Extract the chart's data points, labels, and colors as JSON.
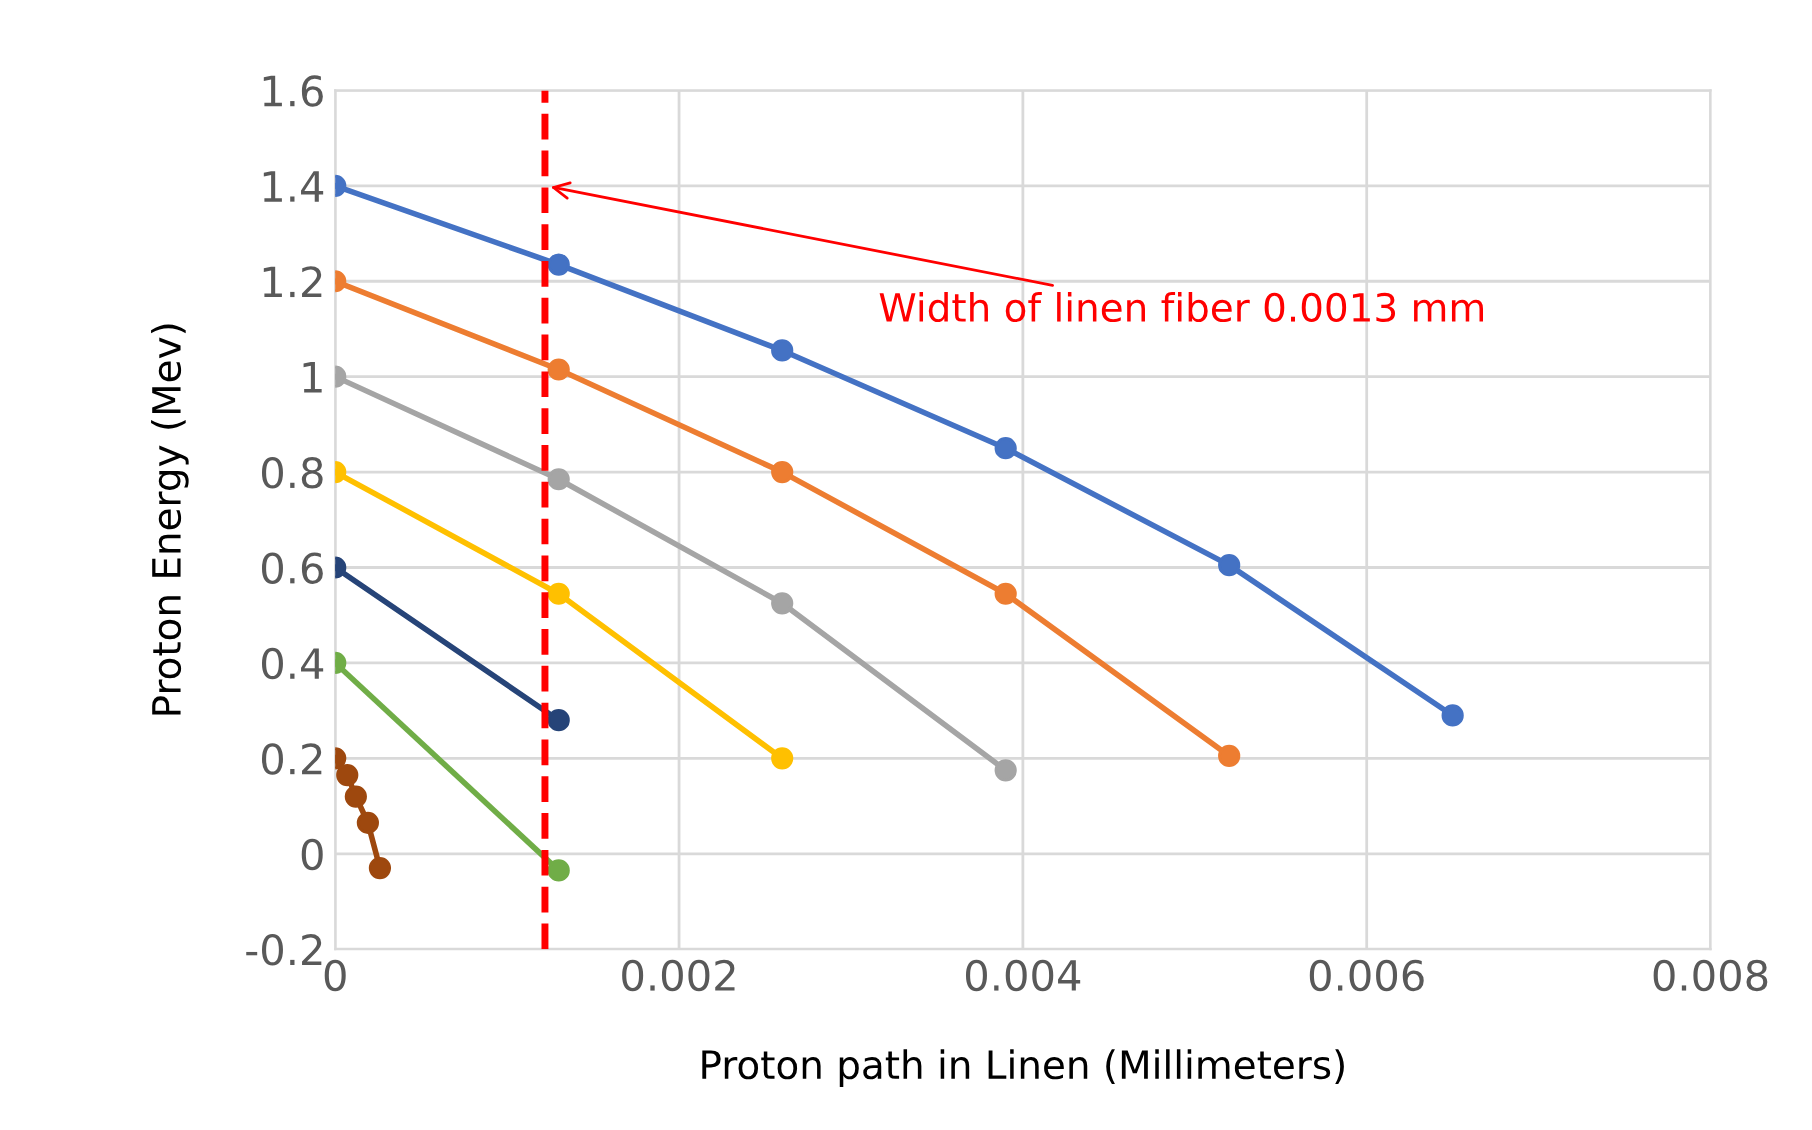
{
  "chart_data": {
    "type": "line",
    "xlabel": "Proton path in Linen (Millimeters)",
    "ylabel": "Proton Energy (Mev)",
    "xlim": [
      0,
      0.008
    ],
    "xticks": [
      0,
      0.002,
      0.004,
      0.006,
      0.008
    ],
    "ylim": [
      -0.2,
      1.6
    ],
    "yticks": [
      -0.2,
      0,
      0.2,
      0.4,
      0.6,
      0.8,
      1,
      1.2,
      1.4,
      1.6
    ],
    "grid": true,
    "legend": false,
    "marker": "circle",
    "line_style": "solid",
    "series": [
      {
        "color": "#4472c4",
        "x": [
          0,
          0.0013,
          0.0026,
          0.0039,
          0.0052,
          0.0065
        ],
        "values": [
          1.4,
          1.235,
          1.055,
          0.85,
          0.605,
          0.29
        ]
      },
      {
        "color": "#ed7d31",
        "x": [
          0,
          0.0013,
          0.0026,
          0.0039,
          0.0052
        ],
        "values": [
          1.2,
          1.015,
          0.8,
          0.545,
          0.205
        ]
      },
      {
        "color": "#a5a5a5",
        "x": [
          0,
          0.0013,
          0.0026,
          0.0039
        ],
        "values": [
          1.0,
          0.785,
          0.525,
          0.175
        ]
      },
      {
        "color": "#ffc000",
        "x": [
          0,
          0.0013,
          0.0026
        ],
        "values": [
          0.8,
          0.545,
          0.2
        ]
      },
      {
        "color": "#264478",
        "x": [
          0,
          0.0013
        ],
        "values": [
          0.6,
          0.28
        ]
      },
      {
        "color": "#70ad47",
        "x": [
          0,
          0.0013
        ],
        "values": [
          0.4,
          -0.035
        ]
      },
      {
        "color": "#9e480e",
        "x": [
          0,
          7e-05,
          0.00012,
          0.00019,
          0.00026
        ],
        "values": [
          0.2,
          0.165,
          0.12,
          0.065,
          -0.03
        ]
      }
    ],
    "ref_lines": [
      {
        "axis": "x",
        "value": 0.00122,
        "label": null,
        "color": "#ff0000",
        "line_style": "dashed"
      }
    ],
    "annotations": [
      {
        "text": "Width of linen fiber 0.0013 mm",
        "x": 0.00122,
        "y": 1.4
      }
    ]
  }
}
